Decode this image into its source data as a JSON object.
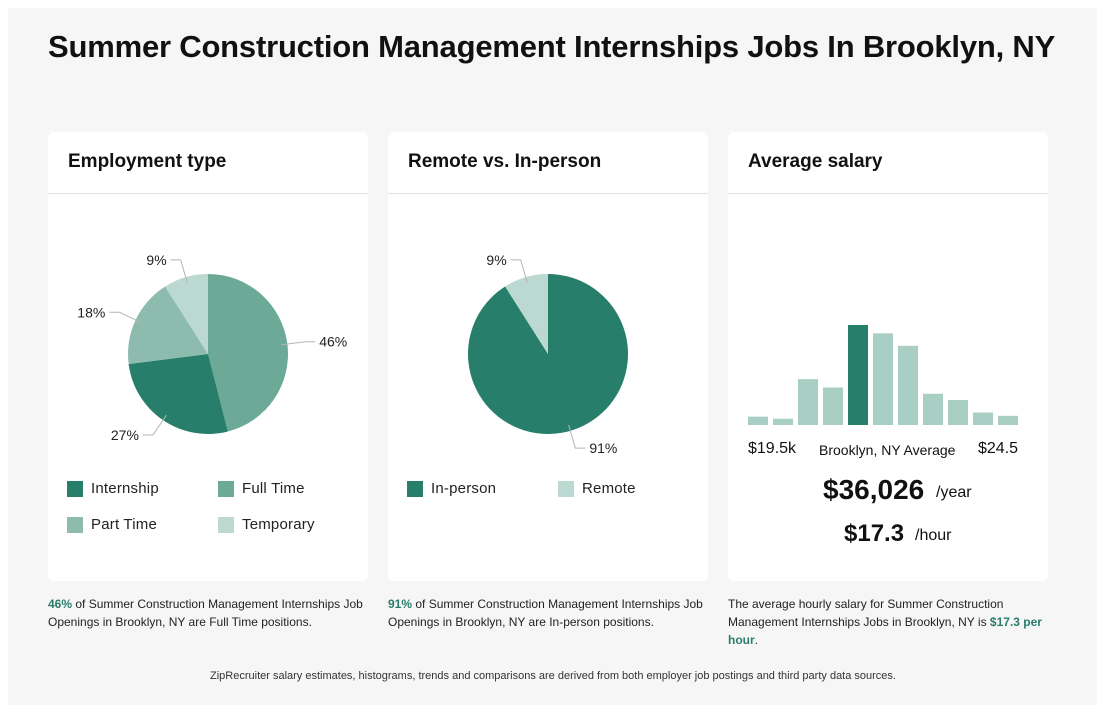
{
  "page": {
    "title": "Summer Construction Management Internships Jobs In Brooklyn, NY",
    "footer": "ZipRecruiter salary estimates, histograms, trends and comparisons are derived from both employer job postings and third party data sources."
  },
  "colors": {
    "internship": "#277e6a",
    "full_time": "#6caa97",
    "part_time": "#8dbcae",
    "temporary": "#bcd9d1",
    "in_person": "#277e6a",
    "remote": "#bcd9d1",
    "histogram_bar": "#a9cfc4",
    "histogram_highlight": "#277e6a",
    "accent_text": "#2a7d6a"
  },
  "employment": {
    "title": "Employment type",
    "legend": [
      {
        "label": "Internship",
        "color_key": "internship"
      },
      {
        "label": "Full Time",
        "color_key": "full_time"
      },
      {
        "label": "Part Time",
        "color_key": "part_time"
      },
      {
        "label": "Temporary",
        "color_key": "temporary"
      }
    ],
    "caption": {
      "highlight": "46%",
      "text": " of Summer Construction Management Internships Job Openings in Brooklyn, NY are Full Time positions."
    }
  },
  "remote": {
    "title": "Remote vs. In-person",
    "legend": [
      {
        "label": "In-person",
        "color_key": "in_person"
      },
      {
        "label": "Remote",
        "color_key": "remote"
      }
    ],
    "caption": {
      "highlight": "91%",
      "text": " of Summer Construction Management Internships Job Openings in Brooklyn, NY are In-person positions."
    }
  },
  "salary": {
    "title": "Average salary",
    "min_label": "$19.5k",
    "mid_label": "Brooklyn, NY Average",
    "max_label": "$24.5",
    "yearly": "$36,026",
    "yearly_unit": "/year",
    "hourly": "$17.3",
    "hourly_unit": "/hour",
    "caption": {
      "text": "The average hourly salary for Summer Construction Management Internships Jobs in Brooklyn, NY is ",
      "highlight": "$17.3 per hour",
      "end": "."
    }
  },
  "chart_data": [
    {
      "type": "pie",
      "title": "Employment type",
      "series": [
        {
          "name": "Full Time",
          "value": 46,
          "label": "46%",
          "color_key": "full_time"
        },
        {
          "name": "Internship",
          "value": 27,
          "label": "27%",
          "color_key": "internship"
        },
        {
          "name": "Part Time",
          "value": 18,
          "label": "18%",
          "color_key": "part_time"
        },
        {
          "name": "Temporary",
          "value": 9,
          "label": "9%",
          "color_key": "temporary"
        }
      ]
    },
    {
      "type": "pie",
      "title": "Remote vs. In-person",
      "series": [
        {
          "name": "In-person",
          "value": 91,
          "label": "91%",
          "color_key": "in_person"
        },
        {
          "name": "Remote",
          "value": 9,
          "label": "9%",
          "color_key": "remote"
        }
      ]
    },
    {
      "type": "bar",
      "title": "Average salary",
      "values": [
        2,
        1.5,
        11,
        9,
        24,
        22,
        19,
        7.5,
        6,
        3,
        2.2
      ],
      "highlight_index": 4
    }
  ]
}
